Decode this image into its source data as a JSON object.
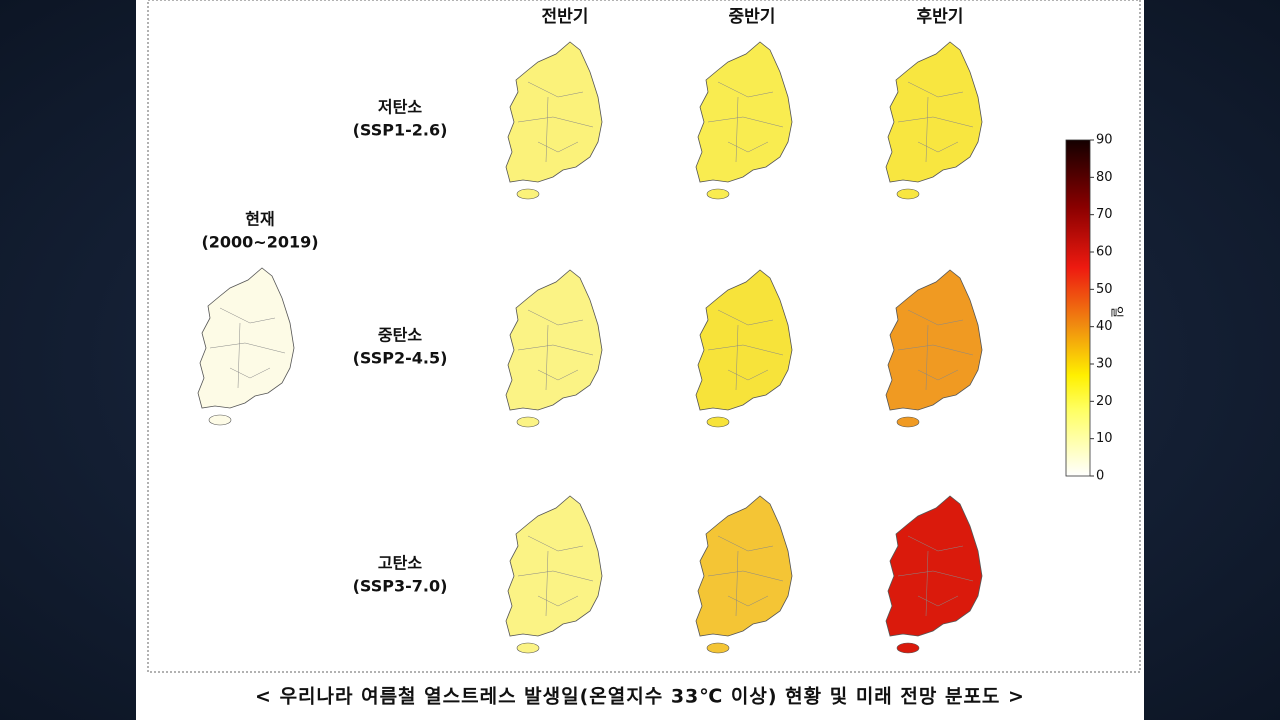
{
  "columns": [
    "전반기",
    "중반기",
    "후반기"
  ],
  "rows": [
    {
      "label": "저탄소",
      "scenario": "(SSP1-2.6)"
    },
    {
      "label": "중탄소",
      "scenario": "(SSP2-4.5)"
    },
    {
      "label": "고탄소",
      "scenario": "(SSP3-7.0)"
    }
  ],
  "current": {
    "label": "현재",
    "period": "(2000~2019)"
  },
  "colorbar": {
    "label": "일",
    "range": [
      0,
      90
    ],
    "ticks": [
      0,
      10,
      20,
      30,
      40,
      50,
      60,
      70,
      80,
      90
    ]
  },
  "caption": "< 우리나라 여름철 열스트레스 발생일(온열지수 33℃ 이상) 현황 및 미래 전망 분포도 >"
}
